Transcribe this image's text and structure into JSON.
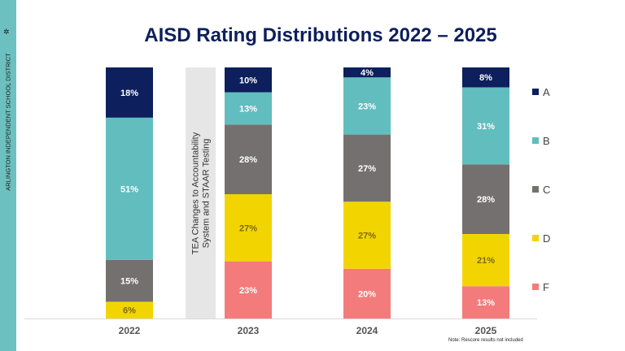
{
  "sidebar": {
    "text": "ARLINGTON INDEPENDENT SCHOOL DISTRICT",
    "logo_icon": "star-burst-icon"
  },
  "colors": {
    "A": "#0d1f5c",
    "B": "#62bdbe",
    "C": "#757070",
    "D": "#f2d500",
    "F": "#f47b7b",
    "sidebar": "#6cc0bf"
  },
  "note": "Note: Rescore results not included",
  "chart_data": {
    "type": "bar",
    "stacked": true,
    "title": "AISD Rating Distributions 2022 – 2025",
    "categories": [
      "2022",
      "2023",
      "2024",
      "2025"
    ],
    "series": [
      {
        "name": "F",
        "values": [
          0,
          23,
          20,
          13
        ]
      },
      {
        "name": "D",
        "values": [
          6,
          27,
          27,
          21
        ]
      },
      {
        "name": "C",
        "values": [
          15,
          28,
          27,
          28
        ]
      },
      {
        "name": "B",
        "values": [
          51,
          13,
          23,
          31
        ]
      },
      {
        "name": "A",
        "values": [
          18,
          10,
          4,
          8
        ]
      }
    ],
    "legend_order": [
      "A",
      "B",
      "C",
      "D",
      "F"
    ],
    "legend_position": "right",
    "annotation": "TEA Changes to Accountability System and STAAR Testing",
    "grid": false
  }
}
